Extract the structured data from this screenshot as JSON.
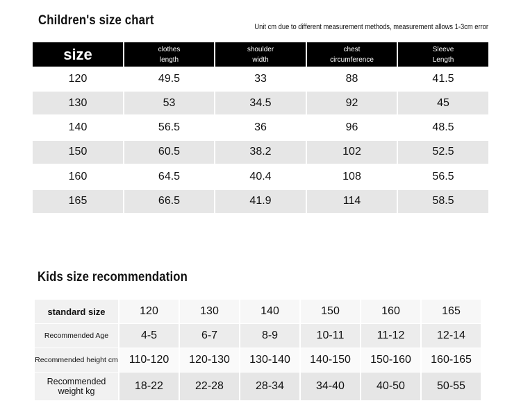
{
  "chart": {
    "title": "Children's size chart",
    "note": "Unit cm due to different measurement methods, measurement allows 1-3cm error",
    "header": [
      [
        "size"
      ],
      [
        "clothes",
        "length"
      ],
      [
        "shoulder",
        "width"
      ],
      [
        "chest",
        "circumference"
      ],
      [
        "Sleeve",
        "Length"
      ]
    ],
    "rows": [
      [
        120,
        49.5,
        33,
        88,
        41.5
      ],
      [
        130,
        53,
        34.5,
        92,
        45
      ],
      [
        140,
        56.5,
        36,
        96,
        48.5
      ],
      [
        150,
        60.5,
        38.2,
        102,
        52.5
      ],
      [
        160,
        64.5,
        40.4,
        108,
        56.5
      ],
      [
        165,
        66.5,
        41.9,
        114,
        58.5
      ]
    ]
  },
  "recommendation": {
    "title": "Kids size recommendation",
    "rows": [
      {
        "label": [
          "standard size"
        ],
        "cells": [
          120,
          130,
          140,
          150,
          160,
          165
        ]
      },
      {
        "label": [
          "Recommended Age"
        ],
        "cells": [
          "4-5",
          "6-7",
          "8-9",
          "10-11",
          "11-12",
          "12-14"
        ]
      },
      {
        "label": [
          "Recommended height cm"
        ],
        "cells": [
          "110-120",
          "120-130",
          "130-140",
          "140-150",
          "150-160",
          "160-165"
        ]
      },
      {
        "label": [
          "Recommended",
          "weight kg"
        ],
        "cells": [
          "18-22",
          "22-28",
          "28-34",
          "34-40",
          "40-50",
          "50-55"
        ]
      }
    ]
  }
}
